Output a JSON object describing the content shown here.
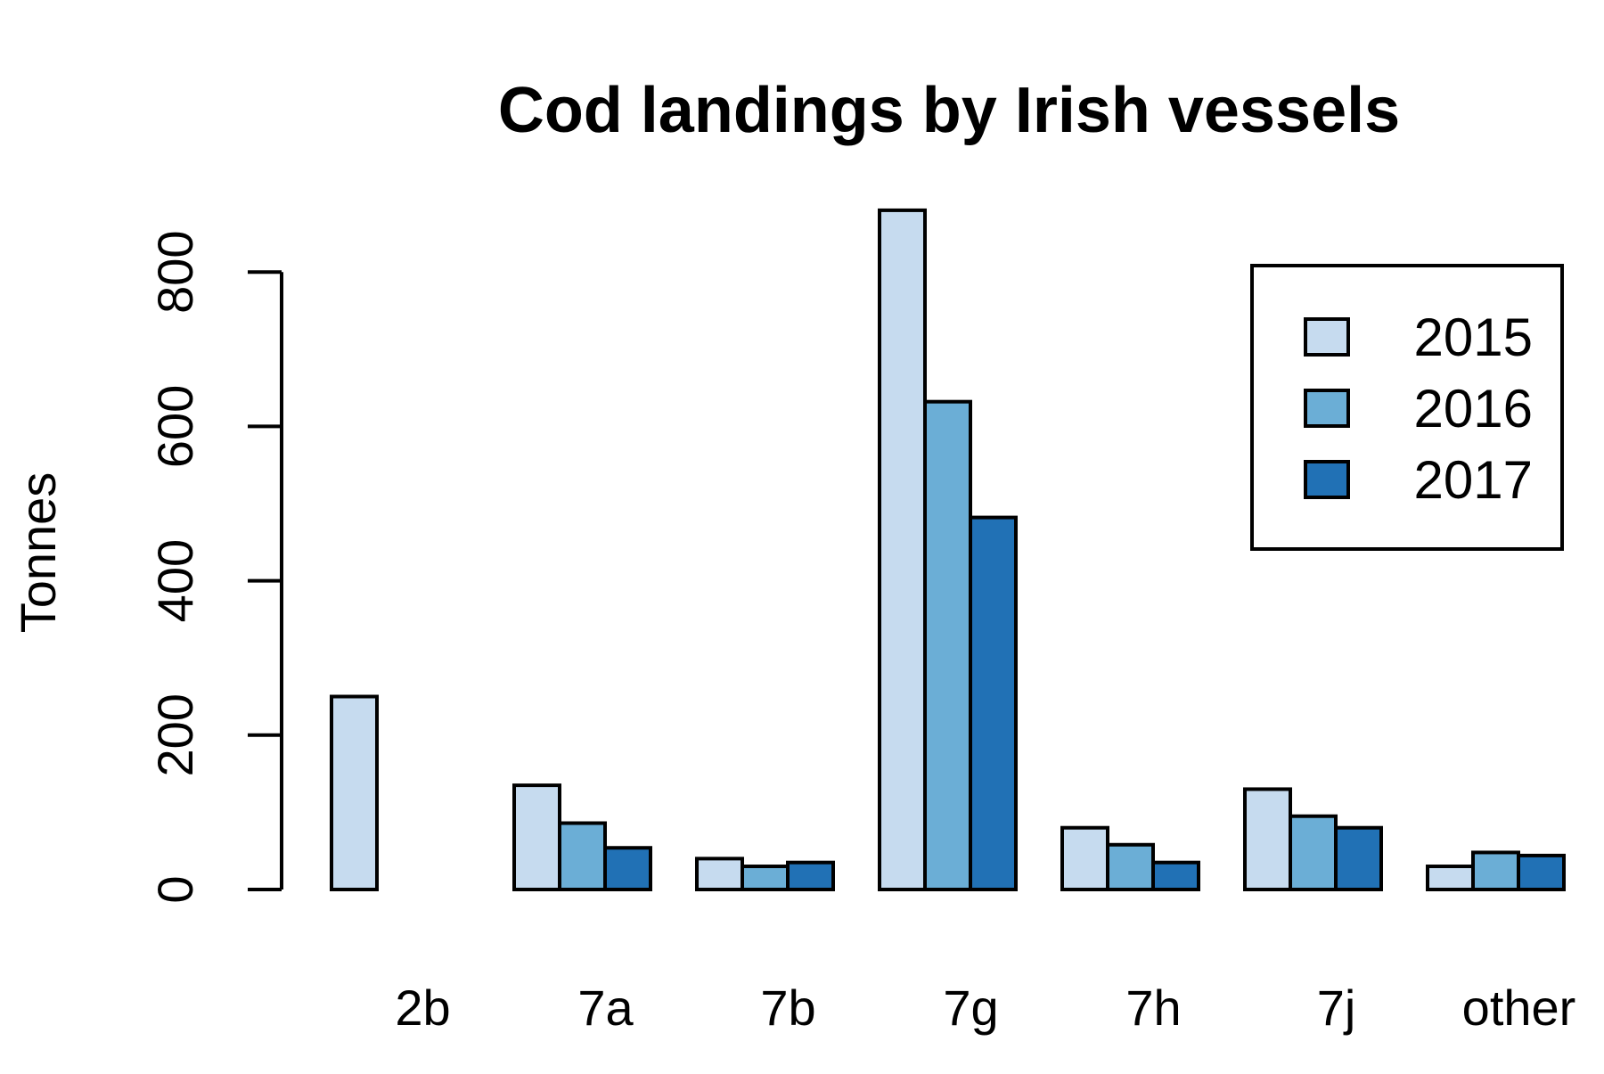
{
  "chart_data": {
    "type": "bar",
    "title": "Cod landings by Irish vessels",
    "xlabel": "",
    "ylabel": "Tonnes",
    "categories": [
      "2b",
      "7a",
      "7b",
      "7g",
      "7h",
      "7j",
      "other"
    ],
    "series": [
      {
        "name": "2015",
        "color": "#c6dbef",
        "values": [
          250,
          135,
          40,
          880,
          80,
          130,
          30
        ]
      },
      {
        "name": "2016",
        "color": "#6baed6",
        "values": [
          0,
          86,
          30,
          632,
          58,
          95,
          48
        ]
      },
      {
        "name": "2017",
        "color": "#2171b5",
        "values": [
          0,
          54,
          35,
          482,
          35,
          80,
          44
        ]
      }
    ],
    "yticks": [
      0,
      200,
      400,
      600,
      800
    ],
    "ylim": [
      0,
      880
    ],
    "grid": false,
    "legend": "top-right"
  }
}
